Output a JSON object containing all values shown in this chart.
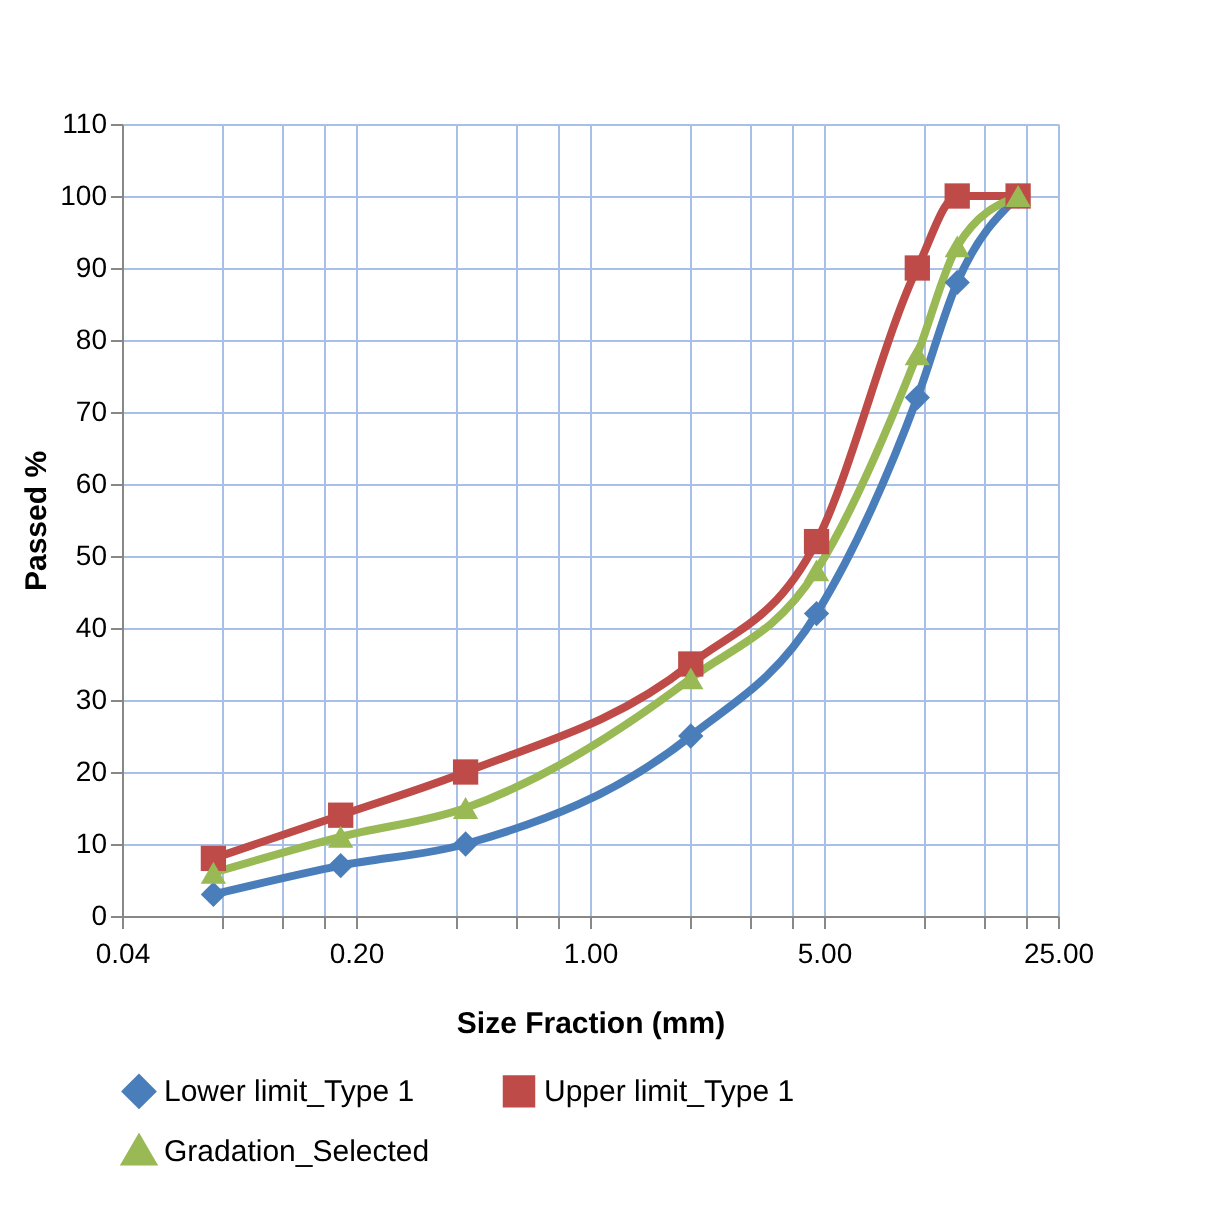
{
  "chart_data": {
    "type": "line",
    "xlabel": "Size Fraction (mm)",
    "ylabel": "Passed %",
    "log": "x",
    "xlim": [
      0.04,
      25
    ],
    "ylim": [
      0,
      110
    ],
    "xticks": [
      {
        "value": 0.04,
        "label": "0.04"
      },
      {
        "value": 0.08,
        "label": null
      },
      {
        "value": 0.12,
        "label": null
      },
      {
        "value": 0.16,
        "label": null
      },
      {
        "value": 0.2,
        "label": "0.20"
      },
      {
        "value": 0.4,
        "label": null
      },
      {
        "value": 0.6,
        "label": null
      },
      {
        "value": 0.8,
        "label": null
      },
      {
        "value": 1,
        "label": "1.00"
      },
      {
        "value": 2,
        "label": null
      },
      {
        "value": 3,
        "label": null
      },
      {
        "value": 4,
        "label": null
      },
      {
        "value": 5,
        "label": "5.00"
      },
      {
        "value": 10,
        "label": null
      },
      {
        "value": 15,
        "label": null
      },
      {
        "value": 20,
        "label": null
      },
      {
        "value": 25,
        "label": "25.00"
      }
    ],
    "yticks": [
      0,
      10,
      20,
      30,
      40,
      50,
      60,
      70,
      80,
      90,
      100,
      110
    ],
    "grid": true,
    "legend": "bottom",
    "line_style": "solid",
    "x": [
      0.075,
      0.18,
      0.425,
      2,
      4.75,
      9.5,
      12.5,
      19
    ],
    "series": [
      {
        "name": "Lower limit_Type 1",
        "color": "#4a7ebb",
        "marker": "diamond",
        "values": [
          3,
          7,
          10,
          25,
          42,
          72,
          88,
          100
        ]
      },
      {
        "name": "Upper limit_Type 1",
        "color": "#be4b48",
        "marker": "square",
        "values": [
          8,
          14,
          20,
          35,
          52,
          90,
          100,
          100
        ]
      },
      {
        "name": "Gradation_Selected",
        "color": "#98b954",
        "marker": "triangle",
        "values": [
          6,
          11,
          15,
          33,
          48,
          78,
          93,
          100
        ]
      }
    ]
  }
}
